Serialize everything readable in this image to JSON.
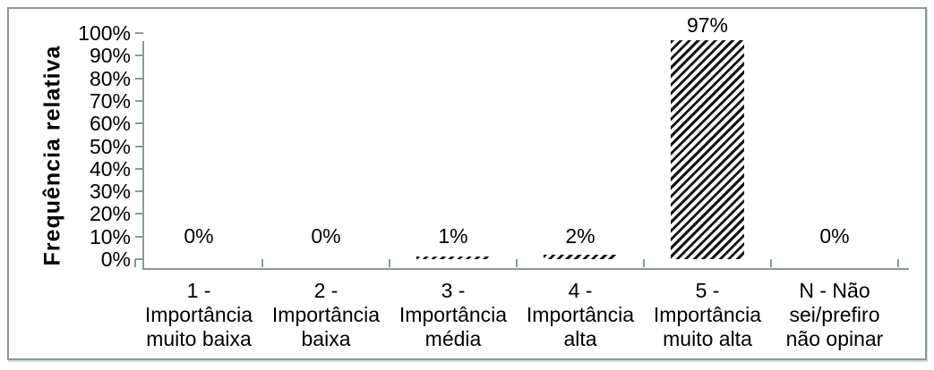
{
  "chart_data": {
    "type": "bar",
    "title": "",
    "xlabel": "",
    "ylabel": "Frequência relativa",
    "categories": [
      "1 -\nImportância\nmuito baixa",
      "2 -\nImportância\nbaixa",
      "3 -\nImportância\nmédia",
      "4 -\nImportância\nalta",
      "5 -\nImportância\nmuito alta",
      "N - Não\nsei/prefiro\nnão opinar"
    ],
    "values": [
      0,
      0,
      1,
      2,
      97,
      0
    ],
    "bar_labels": [
      "0%",
      "0%",
      "1%",
      "2%",
      "97%",
      "0%"
    ],
    "y_tick_labels": [
      "100%",
      "90%",
      "80%",
      "70%",
      "60%",
      "50%",
      "40%",
      "30%",
      "20%",
      "10%",
      "0%"
    ],
    "ylim": [
      0,
      100
    ],
    "y_tick_step": 10,
    "grid": false,
    "legend": false,
    "bar_fill": "diagonal-hatch",
    "colors": {
      "bar_hatch": "#151515",
      "axis_line": "#8a9a94",
      "frame_border": "#8a9a94",
      "text": "#000000",
      "background": "#ffffff"
    }
  }
}
